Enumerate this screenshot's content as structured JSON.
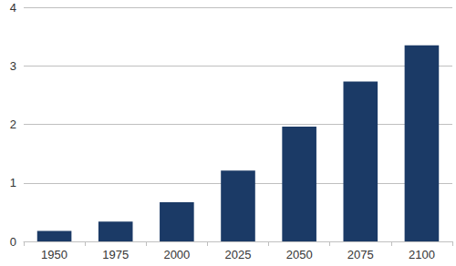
{
  "chart_data": {
    "type": "bar",
    "categories": [
      "1950",
      "1975",
      "2000",
      "2025",
      "2050",
      "2075",
      "2100"
    ],
    "values": [
      0.18,
      0.34,
      0.67,
      1.21,
      1.96,
      2.73,
      3.35
    ],
    "color": "#1b3a66",
    "ylim": [
      0,
      4
    ],
    "yticks": [
      0,
      1,
      2,
      3,
      4
    ],
    "grid": true
  }
}
